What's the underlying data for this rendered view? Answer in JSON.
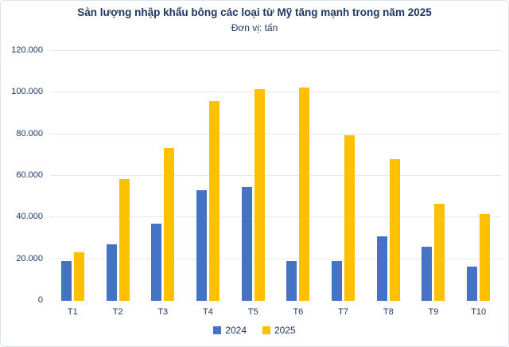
{
  "chart_data": {
    "type": "bar",
    "title": "Sản lượng nhập khẩu bông các loại từ Mỹ tăng mạnh trong năm 2025",
    "subtitle": "Đơn vị: tấn",
    "categories": [
      "T1",
      "T2",
      "T3",
      "T4",
      "T5",
      "T6",
      "T7",
      "T8",
      "T9",
      "T10"
    ],
    "series": [
      {
        "name": "2024",
        "color": "#4472C4",
        "values": [
          19000,
          27000,
          37000,
          53000,
          54500,
          19000,
          19000,
          31000,
          26000,
          16500
        ]
      },
      {
        "name": "2025",
        "color": "#FFC000",
        "values": [
          23500,
          58500,
          73500,
          96000,
          101500,
          102500,
          79500,
          68000,
          46500,
          41500
        ]
      }
    ],
    "xlabel": "",
    "ylabel": "",
    "ylim": [
      0,
      120000
    ],
    "yticks": [
      {
        "value": 0,
        "label": "0"
      },
      {
        "value": 20000,
        "label": "20.000"
      },
      {
        "value": 40000,
        "label": "40.000"
      },
      {
        "value": 60000,
        "label": "60.000"
      },
      {
        "value": 80000,
        "label": "80.000"
      },
      {
        "value": 100000,
        "label": "100.000"
      },
      {
        "value": 120000,
        "label": "120.000"
      }
    ],
    "grid": true,
    "legend_position": "bottom",
    "colors": {
      "text": "#1f3864",
      "gridline": "#e6e6e6",
      "background": "#ffffff",
      "border": "#dde3ec"
    }
  }
}
